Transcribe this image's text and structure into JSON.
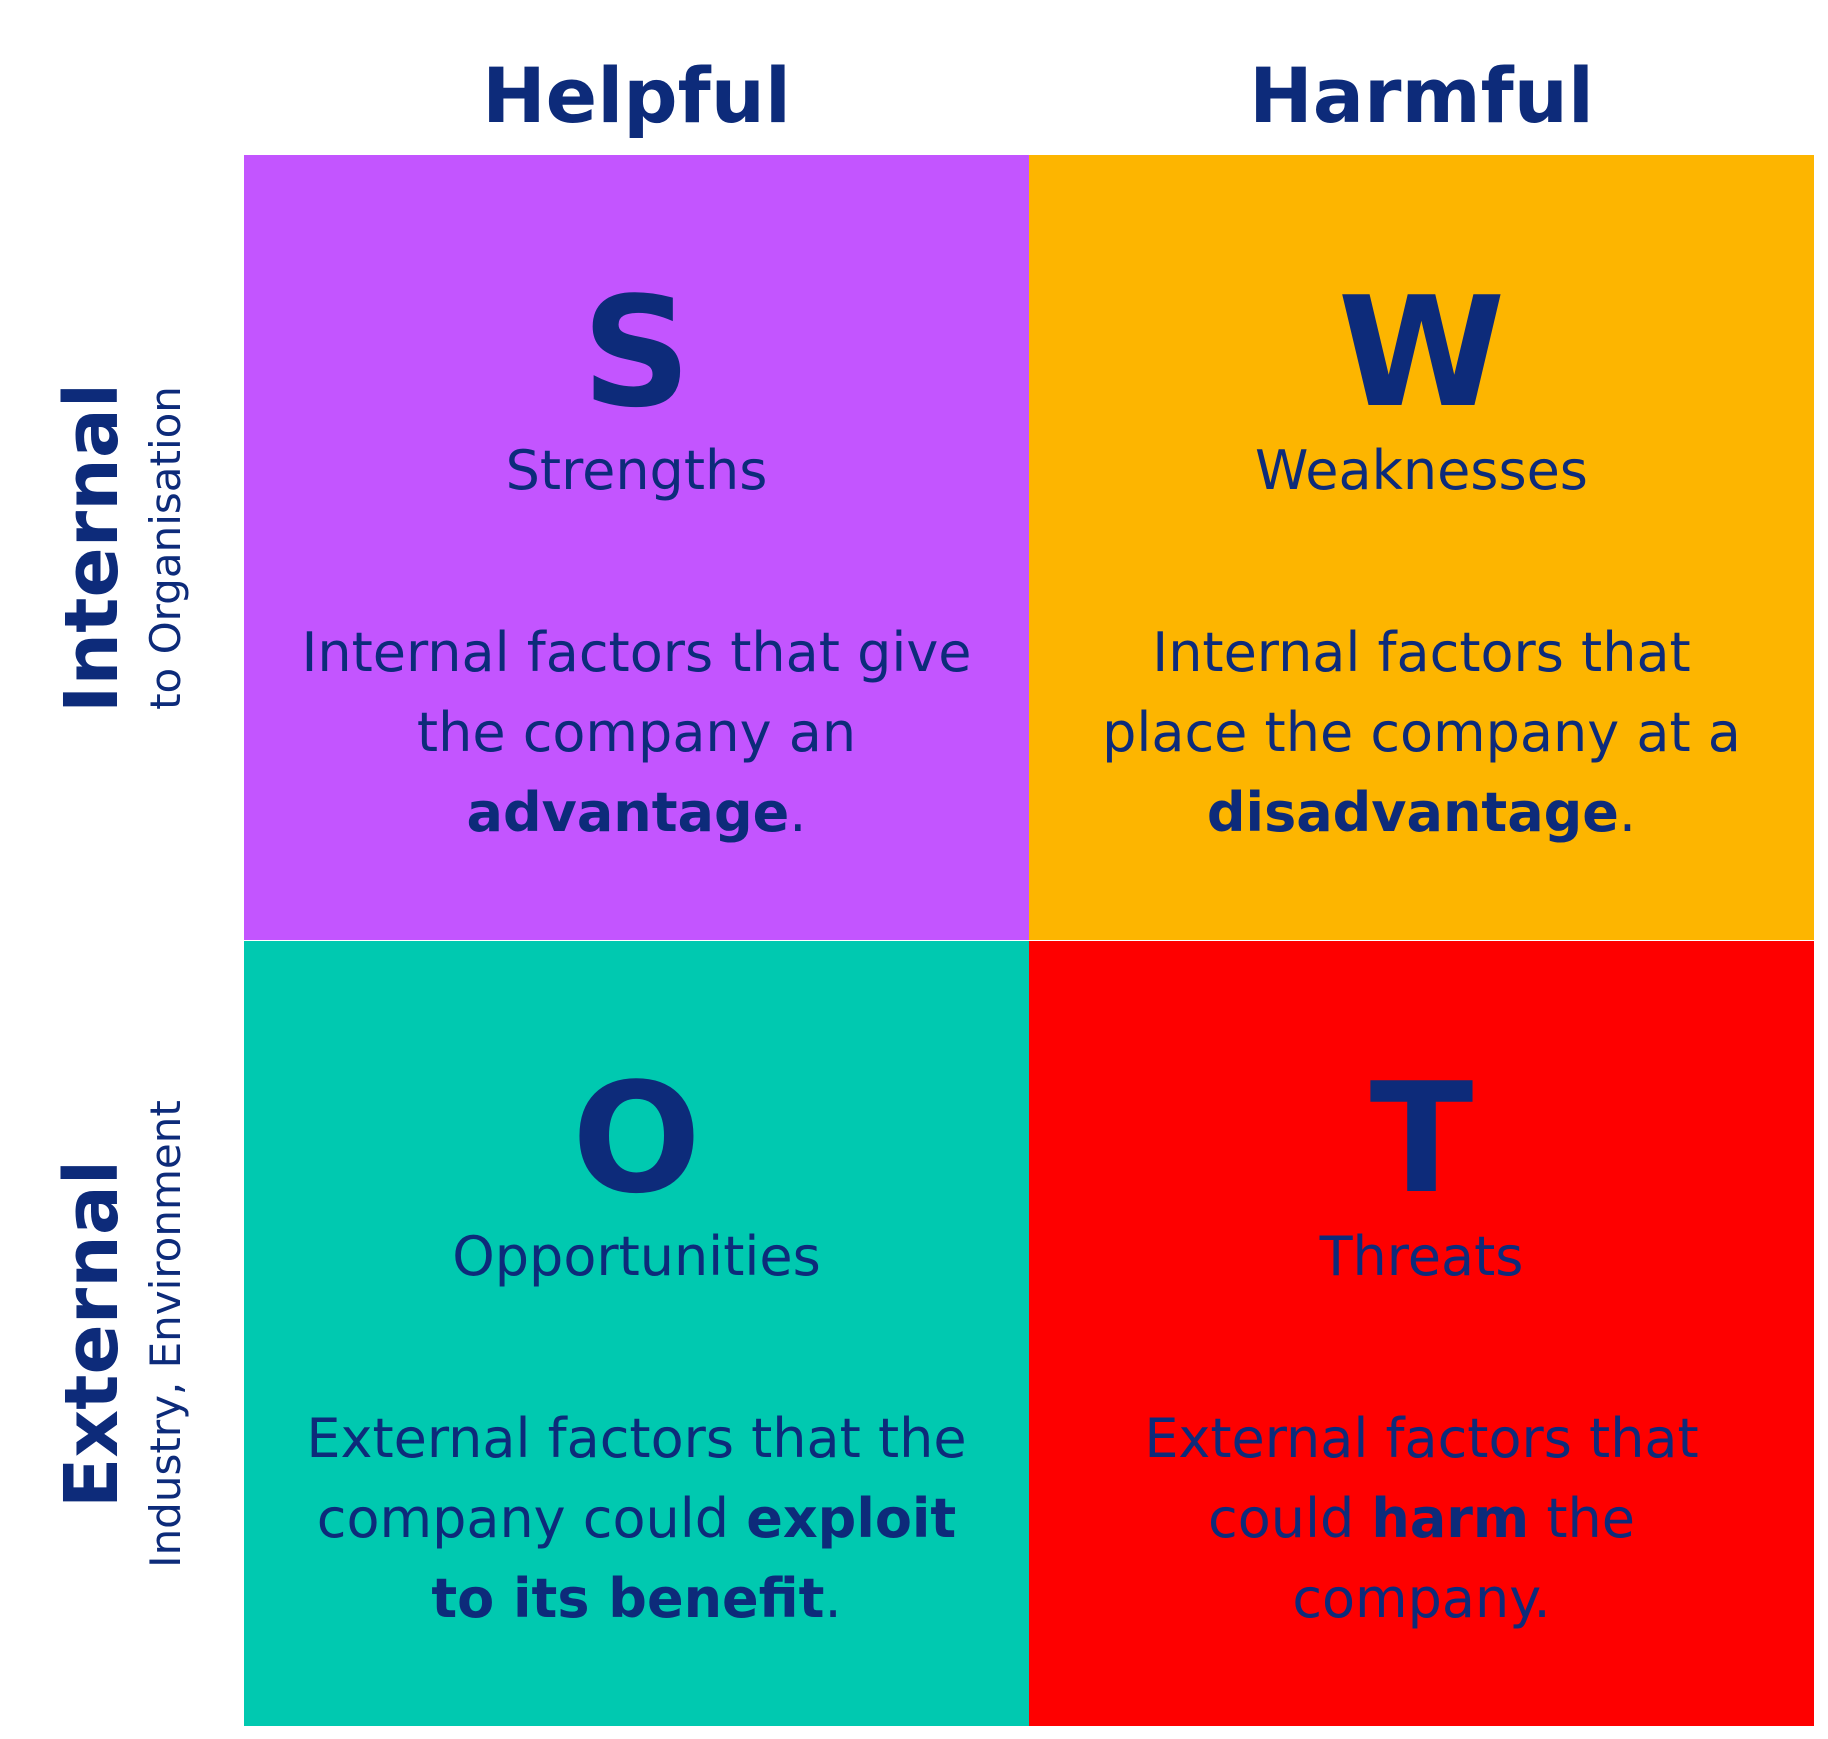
{
  "columns": {
    "helpful": "Helpful",
    "harmful": "Harmful"
  },
  "rows": {
    "internal": {
      "label": "Internal",
      "sublabel": "to Organisation"
    },
    "external": {
      "label": "External",
      "sublabel": "Industry, Environment"
    }
  },
  "colors": {
    "strengths": "#c355ff",
    "weaknesses": "#fdb500",
    "opportunities": "#00c9b0",
    "threats": "#fe0000",
    "text": "#0d2b7a"
  },
  "quadrants": {
    "strengths": {
      "letter": "S",
      "title": "Strengths",
      "desc_1": "Internal factors that give the company an ",
      "desc_bold": "advantage",
      "desc_2": "."
    },
    "weaknesses": {
      "letter": "W",
      "title": "Weaknesses",
      "desc_1": "Internal factors that place the company at a ",
      "desc_bold": "disadvantage",
      "desc_2": "."
    },
    "opportunities": {
      "letter": "O",
      "title": "Opportunities",
      "desc_1": "External factors that the company could ",
      "desc_bold": "exploit to its benefit",
      "desc_2": "."
    },
    "threats": {
      "letter": "T",
      "title": "Threats",
      "desc_1": "External factors that could ",
      "desc_bold": "harm",
      "desc_2": " the company."
    }
  }
}
